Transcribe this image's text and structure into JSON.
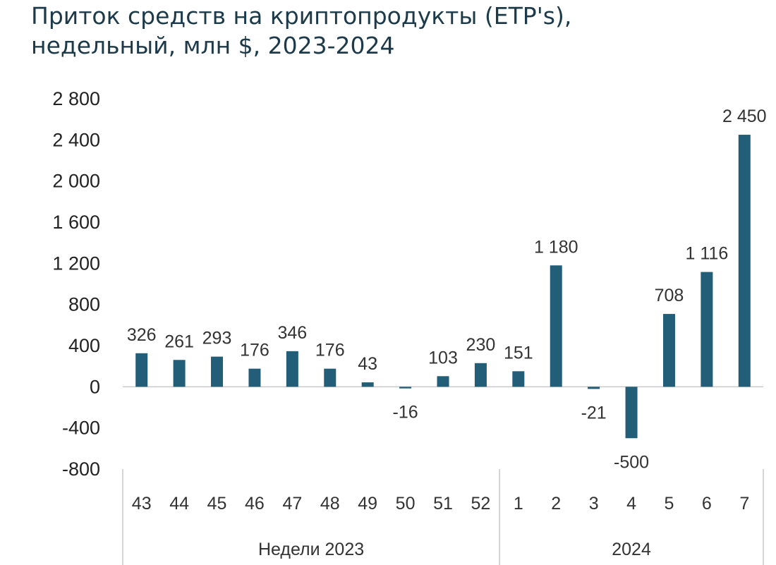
{
  "title": {
    "line1": "Приток средств на криптопродукты (ETP's),",
    "line2": "недельный, млн $, 2023-2024"
  },
  "colors": {
    "bar": "#225e78",
    "axis": "#c8c8c8",
    "title": "#1c3a4a"
  },
  "chart_data": {
    "type": "bar",
    "title": "Приток средств на криптопродукты (ETP's), недельный, млн $, 2023-2024",
    "categories": [
      "43",
      "44",
      "45",
      "46",
      "47",
      "48",
      "49",
      "50",
      "51",
      "52",
      "1",
      "2",
      "3",
      "4",
      "5",
      "6",
      "7"
    ],
    "groups": [
      {
        "label": "Недели 2023",
        "categories": [
          "43",
          "44",
          "45",
          "46",
          "47",
          "48",
          "49",
          "50",
          "51",
          "52"
        ]
      },
      {
        "label": "2024",
        "categories": [
          "1",
          "2",
          "3",
          "4",
          "5",
          "6",
          "7"
        ]
      }
    ],
    "values": [
      326,
      261,
      293,
      176,
      346,
      176,
      43,
      -16,
      103,
      230,
      151,
      1180,
      -21,
      -500,
      708,
      1116,
      2450
    ],
    "data_labels": [
      "326",
      "261",
      "293",
      "176",
      "346",
      "176",
      "43",
      "-16",
      "103",
      "230",
      "151",
      "1 180",
      "-21",
      "-500",
      "708",
      "1 116",
      "2 450"
    ],
    "yticks": [
      2800,
      2400,
      2000,
      1600,
      1200,
      800,
      400,
      0,
      -400,
      -800
    ],
    "ytick_labels": [
      "2 800",
      "2 400",
      "2 000",
      "1 600",
      "1 200",
      "800",
      "400",
      "0",
      "-400",
      "-800"
    ],
    "ylim": [
      -800,
      2800
    ],
    "xlabel": "",
    "ylabel": "",
    "grid": false,
    "legend": "none"
  }
}
